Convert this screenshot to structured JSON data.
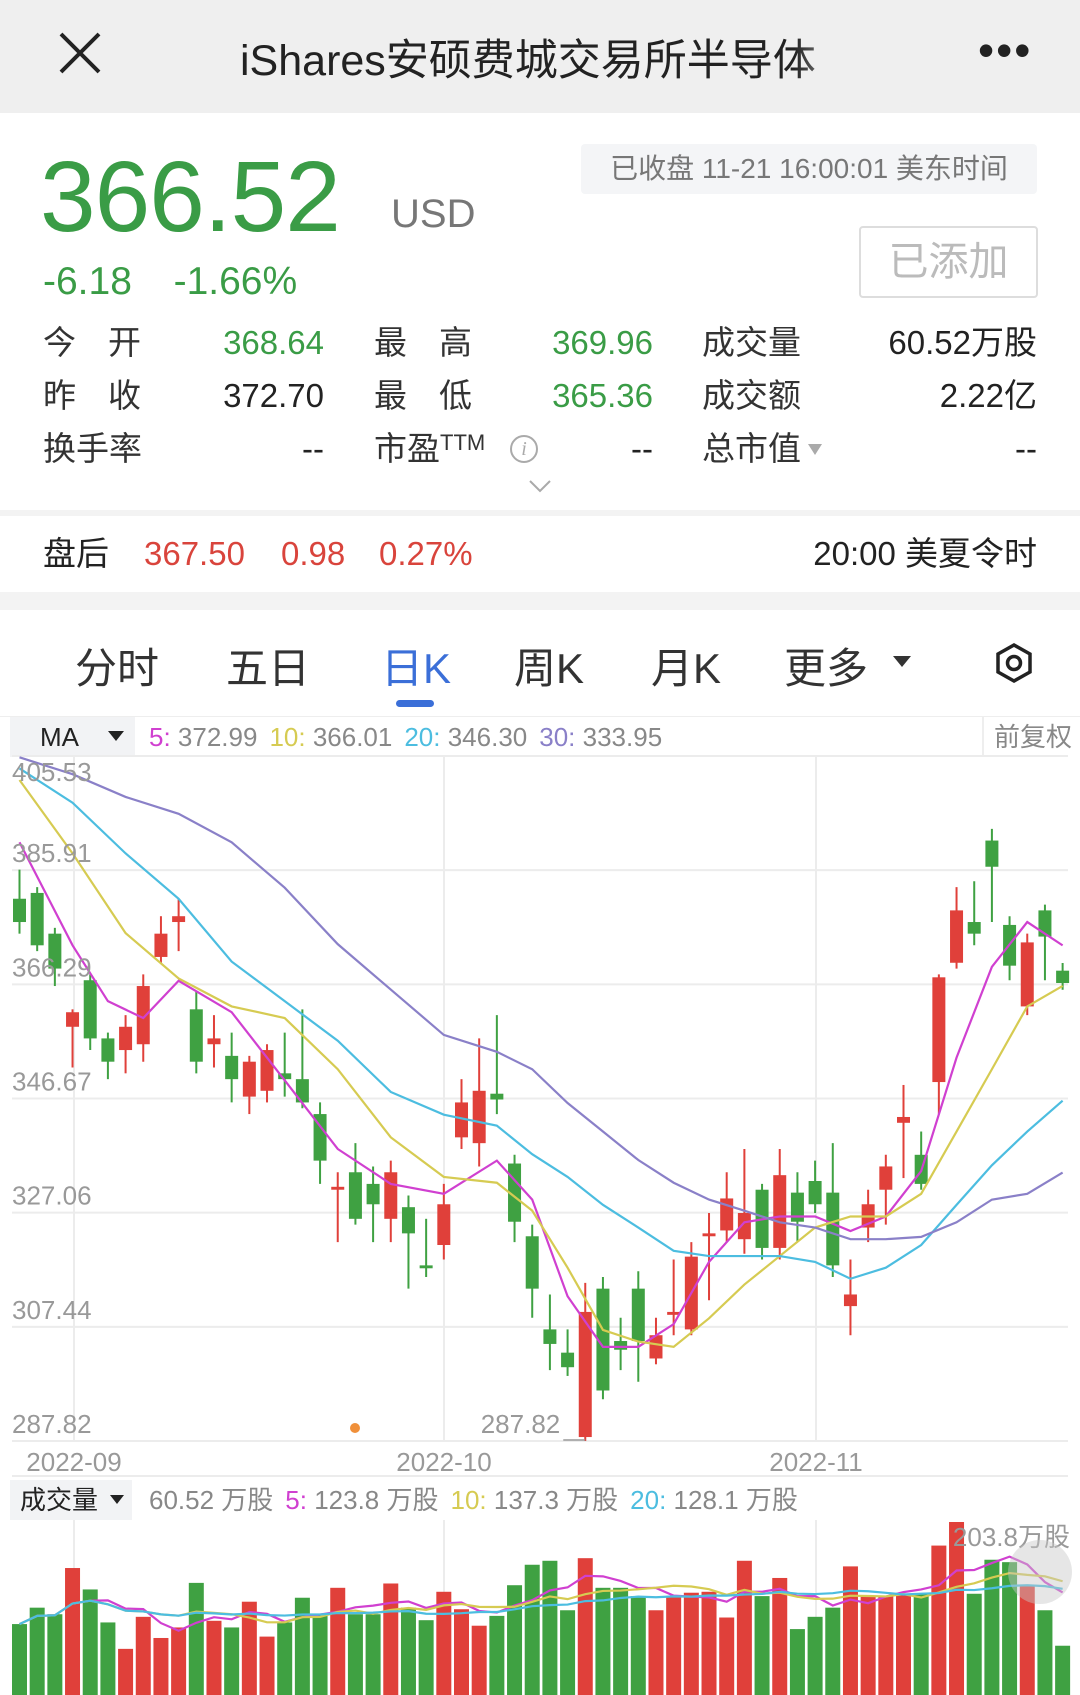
{
  "header": {
    "title": "iShares安硕费城交易所半导体",
    "close_icon": "close-icon",
    "more_icon": "more-icon",
    "more_label": "•••"
  },
  "quote": {
    "price": "366.52",
    "currency": "USD",
    "change": "-6.18",
    "change_pct": "-1.66%",
    "status": "已收盘 11-21 16:00:01 美东时间",
    "watch_button": "已添加",
    "up_color": "#e0403a",
    "down_color": "#3a9c46"
  },
  "stats": [
    {
      "label": "今开",
      "value": "368.64",
      "color": "#3a9c46"
    },
    {
      "label": "最高",
      "value": "369.96",
      "color": "#3a9c46"
    },
    {
      "label": "成交量",
      "value": "60.52万股",
      "color": "#222"
    },
    {
      "label": "昨收",
      "value": "372.70",
      "color": "#222"
    },
    {
      "label": "最低",
      "value": "365.36",
      "color": "#3a9c46"
    },
    {
      "label": "成交额",
      "value": "2.22亿",
      "color": "#222"
    },
    {
      "label": "换手率",
      "value": "--",
      "color": "#222"
    },
    {
      "label": "市盈",
      "sup": "TTM",
      "value": "--",
      "color": "#222"
    },
    {
      "label": "总市值",
      "value": "--",
      "color": "#222"
    }
  ],
  "after_hours": {
    "label": "盘后",
    "price": "367.50",
    "change": "0.98",
    "pct": "0.27%",
    "time": "20:00 美夏令时"
  },
  "tabs": [
    {
      "label": "分时"
    },
    {
      "label": "五日"
    },
    {
      "label": "日K",
      "active": true
    },
    {
      "label": "周K"
    },
    {
      "label": "月K"
    },
    {
      "label": "更多"
    }
  ],
  "ma_bar": {
    "label": "MA",
    "items": [
      {
        "key": "5:",
        "value": " 372.99",
        "color": "#d040d0"
      },
      {
        "key": "10:",
        "value": " 366.01",
        "color": "#d6cb52"
      },
      {
        "key": "20:",
        "value": " 346.30",
        "color": "#4cbde0"
      },
      {
        "key": "30:",
        "value": " 333.95",
        "color": "#8a80c8"
      }
    ],
    "adjust": "前复权"
  },
  "vol_bar": {
    "label": "成交量",
    "current": "60.52 万股",
    "items": [
      {
        "key": "5:",
        "value": " 123.8 万股",
        "color": "#d040d0"
      },
      {
        "key": "10:",
        "value": " 137.3 万股",
        "color": "#d6cb52"
      },
      {
        "key": "20:",
        "value": " 128.1 万股",
        "color": "#4cbde0"
      }
    ]
  },
  "chart_data": {
    "type": "candlestick",
    "y_ticks": [
      "405.53",
      "385.91",
      "366.29",
      "346.67",
      "327.06",
      "307.44",
      "287.82"
    ],
    "ylim": [
      287.82,
      405.53
    ],
    "x_ticks": [
      {
        "label": "2022-09",
        "index": 3
      },
      {
        "label": "2022-10",
        "index": 24
      },
      {
        "label": "2022-11",
        "index": 45
      }
    ],
    "low_label": "287.82",
    "grid": true,
    "candles": [
      [
        381,
        386,
        375,
        377
      ],
      [
        382,
        383,
        372,
        373
      ],
      [
        375,
        376,
        366,
        369
      ],
      [
        359,
        362,
        352,
        361.5
      ],
      [
        367,
        368,
        355,
        357
      ],
      [
        357,
        358,
        350,
        353
      ],
      [
        355,
        361,
        351,
        359
      ],
      [
        356,
        368,
        353,
        366
      ],
      [
        371,
        378,
        370,
        375
      ],
      [
        377,
        381,
        372,
        378
      ],
      [
        362,
        365,
        351,
        353
      ],
      [
        356,
        361,
        352,
        357
      ],
      [
        354,
        358,
        346,
        350
      ],
      [
        347,
        354,
        344,
        353
      ],
      [
        348,
        356,
        346,
        355
      ],
      [
        351,
        358,
        347,
        350
      ],
      [
        350,
        362,
        345,
        346
      ],
      [
        344,
        346,
        332,
        336
      ],
      [
        331,
        334,
        322,
        331.5
      ],
      [
        334,
        339,
        325,
        326
      ],
      [
        332,
        335,
        322,
        328.5
      ],
      [
        326,
        336,
        322,
        334
      ],
      [
        328,
        330,
        314,
        323.5
      ],
      [
        318,
        326,
        316,
        317.5
      ],
      [
        321.5,
        332,
        319,
        328.5
      ],
      [
        340,
        350,
        338,
        346
      ],
      [
        339,
        357,
        335,
        348
      ],
      [
        347.5,
        361,
        344,
        346.5
      ],
      [
        335.5,
        337,
        322,
        325.5
      ],
      [
        323,
        325,
        309,
        314
      ],
      [
        307,
        313,
        300,
        304.5
      ],
      [
        303,
        307,
        299,
        300.5
      ],
      [
        288.5,
        315,
        287.82,
        310
      ],
      [
        314,
        316,
        295,
        296.5
      ],
      [
        305,
        309,
        300,
        303.5
      ],
      [
        314,
        317,
        298,
        305
      ],
      [
        302,
        309,
        301,
        306
      ],
      [
        309.5,
        319,
        306,
        310
      ],
      [
        307,
        322,
        306,
        319.5
      ],
      [
        323,
        327,
        312,
        323.5
      ],
      [
        324,
        334,
        322,
        329.5
      ],
      [
        322.5,
        338,
        320,
        327
      ],
      [
        331,
        332,
        319,
        321
      ],
      [
        321,
        338,
        319,
        333.5
      ],
      [
        330.5,
        334,
        322,
        325.5
      ],
      [
        332.5,
        336,
        327,
        328.5
      ],
      [
        330.5,
        339,
        316,
        318
      ],
      [
        311,
        319,
        306,
        313
      ],
      [
        324.5,
        331,
        322,
        328.5
      ],
      [
        331,
        337,
        325,
        335
      ],
      [
        342.5,
        349,
        333,
        343.5
      ],
      [
        337,
        341,
        331,
        332
      ],
      [
        349.5,
        368,
        344,
        367.5
      ],
      [
        370,
        383,
        369,
        379
      ],
      [
        377,
        384,
        373,
        375
      ],
      [
        391,
        393,
        377,
        386.5
      ],
      [
        376.5,
        378,
        367,
        369.5
      ],
      [
        362.5,
        375,
        361,
        373.5
      ],
      [
        379,
        380,
        367,
        374.5
      ],
      [
        368.64,
        369.96,
        365.36,
        366.52
      ]
    ],
    "ma": {
      "ma5": [
        [
          0,
          390.7
        ],
        [
          3,
          373
        ],
        [
          5,
          363.4
        ],
        [
          7,
          360.5
        ],
        [
          9,
          366.9
        ],
        [
          12,
          361.5
        ],
        [
          15,
          349.8
        ],
        [
          18,
          338
        ],
        [
          21,
          332
        ],
        [
          24,
          330.3
        ],
        [
          27,
          336
        ],
        [
          29,
          329.3
        ],
        [
          31,
          312.7
        ],
        [
          33,
          304
        ],
        [
          35,
          304
        ],
        [
          37,
          307.9
        ],
        [
          39,
          318.6
        ],
        [
          41,
          325.4
        ],
        [
          43,
          326.4
        ],
        [
          45,
          326.4
        ],
        [
          47,
          323.9
        ],
        [
          49,
          326.4
        ],
        [
          51,
          334.2
        ],
        [
          53,
          353.7
        ],
        [
          55,
          369.3
        ],
        [
          57,
          377
        ],
        [
          59,
          372.99
        ]
      ],
      "ma10": [
        [
          0,
          401.4
        ],
        [
          3,
          388.8
        ],
        [
          6,
          375.1
        ],
        [
          9,
          367.3
        ],
        [
          12,
          362.5
        ],
        [
          15,
          360.5
        ],
        [
          18,
          351.7
        ],
        [
          21,
          340
        ],
        [
          24,
          333.2
        ],
        [
          27,
          332.2
        ],
        [
          29,
          327.4
        ],
        [
          31,
          317.6
        ],
        [
          33,
          306.9
        ],
        [
          35,
          304.9
        ],
        [
          37,
          304
        ],
        [
          39,
          308.9
        ],
        [
          41,
          314.7
        ],
        [
          43,
          319.6
        ],
        [
          45,
          324.5
        ],
        [
          47,
          326.4
        ],
        [
          49,
          326.4
        ],
        [
          51,
          330.3
        ],
        [
          53,
          341
        ],
        [
          55,
          351.7
        ],
        [
          57,
          362.5
        ],
        [
          59,
          366.01
        ]
      ],
      "ma20": [
        [
          0,
          403.4
        ],
        [
          3,
          397.5
        ],
        [
          6,
          388.8
        ],
        [
          9,
          381
        ],
        [
          12,
          370.2
        ],
        [
          15,
          363.4
        ],
        [
          18,
          356.6
        ],
        [
          21,
          347.8
        ],
        [
          24,
          343.9
        ],
        [
          27,
          342
        ],
        [
          29,
          337.1
        ],
        [
          31,
          333.2
        ],
        [
          33,
          328.4
        ],
        [
          35,
          324.5
        ],
        [
          37,
          320.5
        ],
        [
          39,
          319.6
        ],
        [
          41,
          319.6
        ],
        [
          43,
          319.6
        ],
        [
          45,
          318.6
        ],
        [
          47,
          315.7
        ],
        [
          49,
          317.6
        ],
        [
          51,
          321.5
        ],
        [
          53,
          328.4
        ],
        [
          55,
          335.2
        ],
        [
          57,
          341
        ],
        [
          59,
          346.3
        ]
      ],
      "ma30": [
        [
          0,
          405.3
        ],
        [
          3,
          402.4
        ],
        [
          6,
          398.5
        ],
        [
          9,
          395.6
        ],
        [
          12,
          390.7
        ],
        [
          15,
          382.9
        ],
        [
          18,
          373.2
        ],
        [
          21,
          365.4
        ],
        [
          24,
          357.6
        ],
        [
          27,
          354.7
        ],
        [
          29,
          351.7
        ],
        [
          31,
          345.9
        ],
        [
          33,
          341
        ],
        [
          35,
          336.1
        ],
        [
          37,
          332.2
        ],
        [
          39,
          329.3
        ],
        [
          41,
          327.4
        ],
        [
          43,
          325.4
        ],
        [
          45,
          324.5
        ],
        [
          47,
          322.5
        ],
        [
          49,
          322.5
        ],
        [
          51,
          322.9
        ],
        [
          53,
          325.4
        ],
        [
          55,
          329.3
        ],
        [
          57,
          330.3
        ],
        [
          59,
          333.95
        ]
      ]
    },
    "volume": {
      "unit": "万股",
      "max_label": "203.8万股",
      "max": 203.8,
      "values": [
        85.6,
        104.6,
        97.0,
        150.5,
        125.7,
        87.5,
        56.9,
        94.0,
        69.5,
        81.7,
        133.3,
        89.4,
        81.7,
        111.5,
        71.1,
        87.5,
        116.1,
        97.0,
        127.6,
        97.0,
        97.0,
        132.6,
        104.6,
        90.1,
        123.0,
        102.8,
        83.7,
        95.1,
        130.6,
        154.3,
        158.9,
        101.6,
        161.9,
        127.6,
        127.6,
        118.0,
        101.6,
        118.0,
        121.9,
        123.0,
        93.2,
        158.9,
        118.0,
        139.0,
        79.8,
        94.0,
        104.6,
        152.4,
        118.0,
        118.0,
        120.0,
        120.0,
        176.5,
        203.8,
        120.7,
        160.1,
        157.3,
        131.4,
        101.6,
        60.52
      ]
    }
  }
}
